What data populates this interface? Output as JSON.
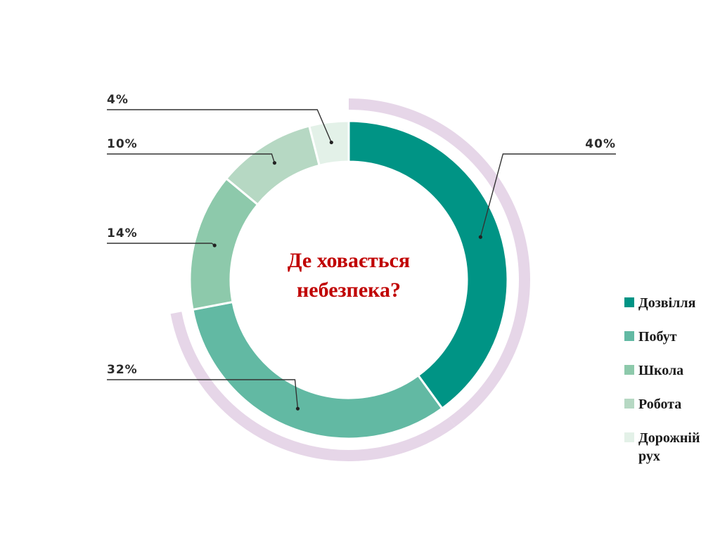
{
  "chart_data": {
    "type": "pie",
    "title": "Де ховається небезпека?",
    "center_title_lines": [
      "Де ховається",
      "небезпека?"
    ],
    "categories": [
      "Дозвілля",
      "Побут",
      "Школа",
      "Робота",
      "Дорожній рух"
    ],
    "values": [
      40,
      32,
      14,
      10,
      4
    ],
    "value_labels": [
      "40%",
      "32%",
      "14%",
      "10%",
      "4%"
    ],
    "colors": [
      "#009485",
      "#62b9a3",
      "#8dc9ab",
      "#b6d8c3",
      "#e3f1e8"
    ],
    "highlight_arc_color": "#e6d6e8",
    "legend_position": "right",
    "legend": [
      {
        "label": "Дозвілля",
        "color": "#009485"
      },
      {
        "label": "Побут",
        "color": "#62b9a3"
      },
      {
        "label": "Школа",
        "color": "#8dc9ab"
      },
      {
        "label": "Робота",
        "color": "#b6d8c3"
      },
      {
        "label": "Дорожній рух",
        "color": "#e3f1e8"
      }
    ]
  }
}
